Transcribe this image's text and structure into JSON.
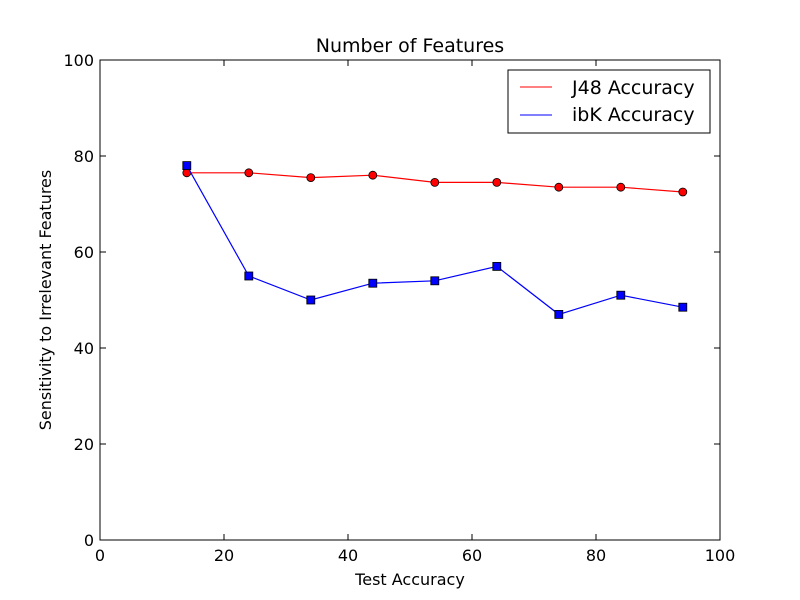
{
  "chart_data": {
    "type": "line",
    "title": "Number of Features",
    "xlabel": "Test Accuracy",
    "ylabel": "Sensitivity to Irrelevant Features",
    "xlim": [
      0,
      100
    ],
    "ylim": [
      0,
      100
    ],
    "xticks": [
      0,
      20,
      40,
      60,
      80,
      100
    ],
    "yticks": [
      0,
      20,
      40,
      60,
      80,
      100
    ],
    "grid": false,
    "legend_position": "top-right",
    "x": [
      14,
      24,
      34,
      44,
      54,
      64,
      74,
      84,
      94
    ],
    "series": [
      {
        "name": "J48 Accuracy",
        "color": "#ff0000",
        "marker": "circle",
        "values": [
          76.5,
          76.5,
          75.5,
          76,
          74.5,
          74.5,
          73.5,
          73.5,
          72.5
        ]
      },
      {
        "name": "ibK Accuracy",
        "color": "#0000ff",
        "marker": "square",
        "values": [
          78,
          55,
          50,
          53.5,
          54,
          57,
          47,
          51,
          48.5
        ]
      }
    ]
  }
}
